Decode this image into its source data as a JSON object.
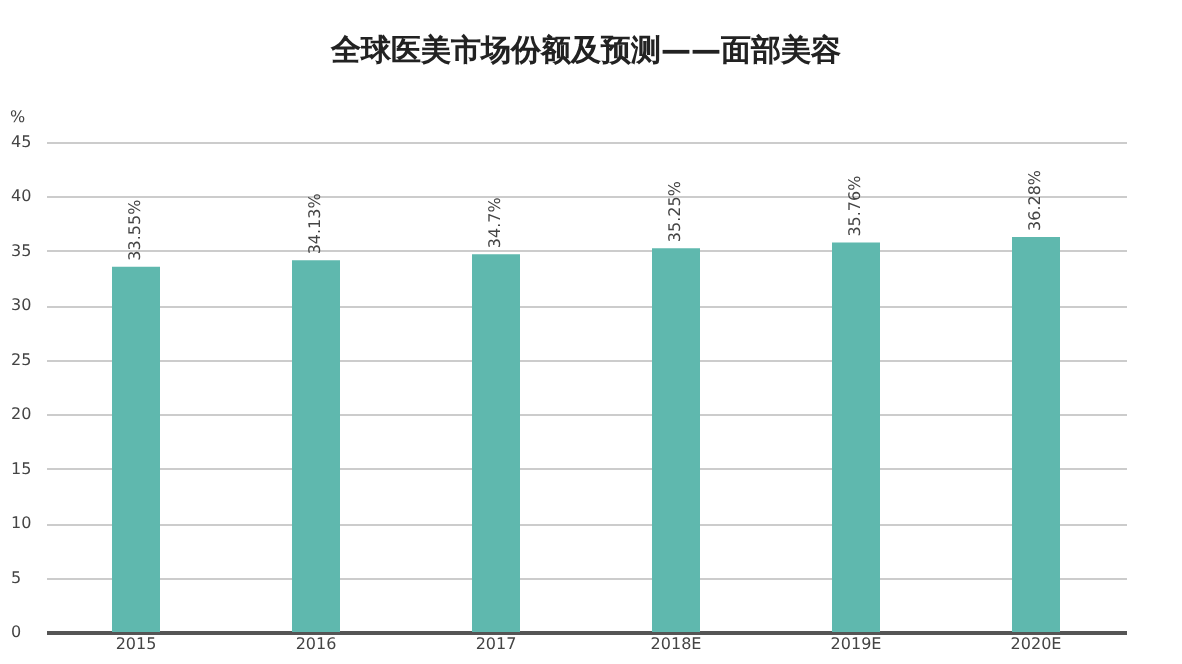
{
  "chart_data": {
    "type": "bar",
    "title": "全球医美市场份额及预测——面部美容",
    "ylabel": "%",
    "categories": [
      "2015",
      "2016",
      "2017",
      "2018E",
      "2019E",
      "2020E"
    ],
    "values": [
      33.55,
      34.13,
      34.7,
      35.25,
      35.76,
      36.28
    ],
    "value_labels": [
      "33.55%",
      "34.13%",
      "34.7%",
      "35.25%",
      "35.76%",
      "36.28%"
    ],
    "color": "#5fb8ae",
    "ylim": [
      0,
      45
    ],
    "yticks": [
      0,
      5,
      10,
      15,
      20,
      25,
      30,
      35,
      40,
      45
    ],
    "grid": "y"
  }
}
